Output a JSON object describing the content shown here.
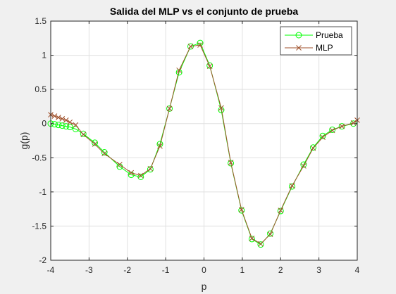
{
  "chart_data": {
    "type": "line",
    "title": "Salida del MLP vs el conjunto de prueba",
    "xlabel": "p",
    "ylabel": "g(p)",
    "xlim": [
      -4,
      4
    ],
    "ylim": [
      -2,
      1.5
    ],
    "xticks": [
      "-4",
      "-3",
      "-2",
      "-1",
      "0",
      "1",
      "2",
      "3",
      "4"
    ],
    "yticks": [
      "-2",
      "-1.5",
      "-1",
      "-0.5",
      "0",
      "0.5",
      "1",
      "1.5"
    ],
    "grid": true,
    "legend_position": "top-right",
    "series": [
      {
        "name": "Prueba",
        "color": "#00ff00",
        "marker": "circle",
        "x": [
          -4.0,
          -3.9,
          -3.8,
          -3.7,
          -3.6,
          -3.5,
          -3.35,
          -3.15,
          -2.85,
          -2.6,
          -2.2,
          -1.9,
          -1.65,
          -1.4,
          -1.15,
          -0.9,
          -0.65,
          -0.35,
          -0.1,
          0.15,
          0.45,
          0.7,
          0.98,
          1.25,
          1.48,
          1.73,
          2.0,
          2.3,
          2.6,
          2.85,
          3.1,
          3.35,
          3.6,
          3.9
        ],
        "y": [
          0.0,
          -0.01,
          -0.02,
          -0.03,
          -0.04,
          -0.05,
          -0.08,
          -0.15,
          -0.28,
          -0.42,
          -0.63,
          -0.75,
          -0.78,
          -0.67,
          -0.3,
          0.22,
          0.75,
          1.13,
          1.18,
          0.85,
          0.2,
          -0.58,
          -1.27,
          -1.69,
          -1.77,
          -1.61,
          -1.28,
          -0.92,
          -0.6,
          -0.35,
          -0.18,
          -0.09,
          -0.04,
          0.0
        ]
      },
      {
        "name": "MLP",
        "color": "#a0522d",
        "marker": "x",
        "x": [
          -4.0,
          -3.9,
          -3.8,
          -3.7,
          -3.6,
          -3.5,
          -3.35,
          -3.15,
          -2.85,
          -2.6,
          -2.2,
          -1.9,
          -1.65,
          -1.4,
          -1.15,
          -0.9,
          -0.65,
          -0.35,
          -0.1,
          0.15,
          0.45,
          0.7,
          0.98,
          1.25,
          1.48,
          1.73,
          2.0,
          2.3,
          2.6,
          2.85,
          3.1,
          3.35,
          3.6,
          3.9,
          4.0
        ],
        "y": [
          0.13,
          0.11,
          0.09,
          0.07,
          0.05,
          0.02,
          -0.02,
          -0.16,
          -0.3,
          -0.44,
          -0.6,
          -0.72,
          -0.76,
          -0.66,
          -0.33,
          0.22,
          0.78,
          1.13,
          1.15,
          0.84,
          0.23,
          -0.57,
          -1.26,
          -1.68,
          -1.76,
          -1.62,
          -1.27,
          -0.91,
          -0.62,
          -0.36,
          -0.2,
          -0.1,
          -0.04,
          0.01,
          0.05
        ]
      }
    ]
  }
}
